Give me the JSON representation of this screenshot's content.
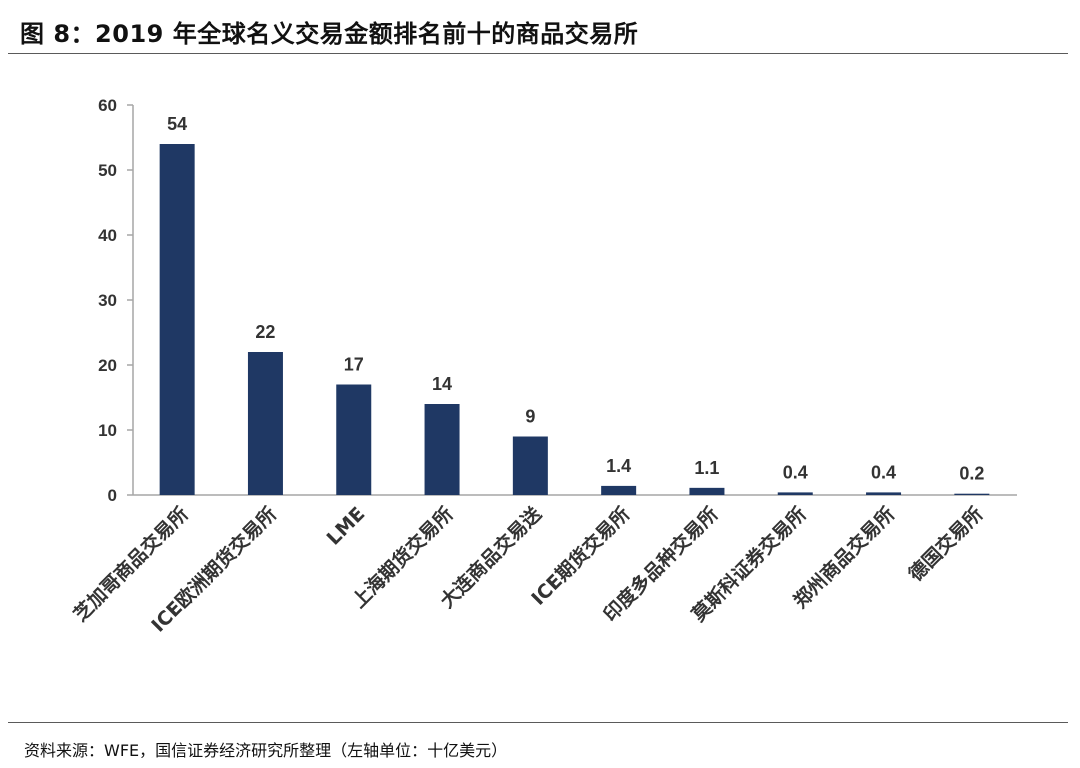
{
  "title": "图 8：2019 年全球名义交易金额排名前十的商品交易所",
  "source_note": "资料来源：WFE，国信证券经济研究所整理（左轴单位：十亿美元）",
  "colors": {
    "bar": "#1f3864",
    "axis": "#a6a6a6"
  },
  "chart_data": {
    "type": "bar",
    "title": "",
    "xlabel": "",
    "ylabel": "",
    "categories": [
      "芝加哥商品交易所",
      "ICE欧洲期货交易所",
      "LME",
      "上海期货交易所",
      "大连商品交易送",
      "ICE期货交易所",
      "印度多品种交易所",
      "莫斯科证券交易所",
      "郑州商品交易所",
      "德国交易所"
    ],
    "values": [
      54,
      22,
      17,
      14,
      9,
      1.4,
      1.1,
      0.4,
      0.4,
      0.2
    ],
    "data_labels": [
      "54",
      "22",
      "17",
      "14",
      "9",
      "1.4",
      "1.1",
      "0.4",
      "0.4",
      "0.2"
    ],
    "y_ticks": [
      "0",
      "10",
      "20",
      "30",
      "40",
      "50",
      "60"
    ],
    "ylim": [
      0,
      60
    ],
    "grid": false,
    "legend": "none"
  }
}
